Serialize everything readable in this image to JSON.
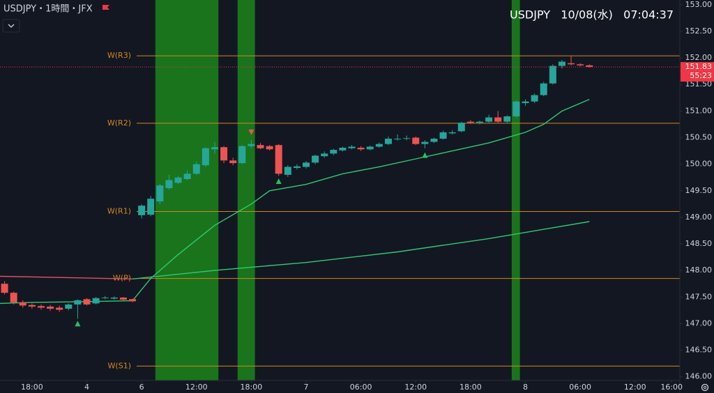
{
  "chart_data": {
    "type": "candlestick",
    "title": "USDJPY・1時間・JFX",
    "overlay_title": "USDJPY   10/08(水)   07:04:37",
    "up_color": "#26a69a",
    "down_color": "#ef5350",
    "x": [
      -3,
      -2,
      -1,
      0,
      1,
      2,
      3,
      4,
      5,
      6,
      7,
      8,
      9,
      10,
      11,
      12,
      13,
      14,
      15,
      16,
      17,
      18,
      19,
      20,
      21,
      22,
      23,
      24,
      25,
      26,
      27,
      28,
      29,
      30,
      31,
      32,
      33,
      34,
      35,
      36,
      37,
      38,
      39,
      40,
      41,
      42,
      43,
      44,
      45,
      46,
      47,
      48,
      49,
      50,
      51,
      52,
      53,
      54,
      55,
      56,
      57,
      58,
      59,
      60,
      61
    ],
    "open": [
      147.75,
      147.58,
      147.4,
      147.35,
      147.33,
      147.32,
      147.3,
      147.28,
      147.36,
      147.46,
      147.38,
      147.48,
      147.47,
      147.49,
      147.46,
      149.04,
      149.05,
      149.3,
      149.55,
      149.65,
      149.72,
      149.82,
      149.98,
      150.28,
      150.32,
      150.07,
      150.02,
      150.34,
      150.36,
      150.34,
      150.36,
      149.8,
      149.93,
      149.95,
      150.03,
      150.15,
      150.2,
      150.26,
      150.3,
      150.31,
      150.28,
      150.33,
      150.38,
      150.47,
      150.48,
      150.5,
      150.38,
      150.42,
      150.48,
      150.58,
      150.62,
      150.8,
      150.78,
      150.8,
      150.88,
      150.8,
      150.9,
      151.15,
      151.18,
      151.3,
      151.52,
      151.85,
      151.9,
      151.88,
      151.86
    ],
    "high": [
      147.8,
      147.6,
      147.44,
      147.38,
      147.36,
      147.35,
      147.34,
      147.38,
      147.46,
      147.48,
      147.5,
      147.52,
      147.51,
      147.5,
      147.47,
      149.25,
      149.4,
      149.63,
      149.8,
      149.78,
      149.88,
      150.05,
      150.32,
      150.42,
      150.34,
      150.12,
      150.36,
      150.45,
      150.4,
      150.36,
      150.38,
      149.98,
      150.0,
      150.06,
      150.18,
      150.24,
      150.29,
      150.33,
      150.36,
      150.34,
      150.35,
      150.41,
      150.52,
      150.56,
      150.54,
      150.52,
      150.45,
      150.5,
      150.63,
      150.64,
      150.8,
      150.83,
      150.82,
      150.93,
      151.0,
      150.92,
      151.2,
      151.22,
      151.33,
      151.55,
      151.88,
      151.96,
      152.05,
      151.9,
      151.88
    ],
    "low": [
      147.55,
      147.36,
      147.3,
      147.28,
      147.26,
      147.24,
      147.22,
      147.25,
      147.09,
      147.34,
      147.36,
      147.46,
      147.45,
      147.43,
      147.4,
      148.98,
      149.02,
      149.25,
      149.52,
      149.62,
      149.7,
      149.8,
      149.95,
      150.2,
      150.02,
      149.98,
      150.0,
      150.3,
      150.28,
      150.26,
      149.78,
      149.76,
      149.9,
      149.92,
      150.0,
      150.12,
      150.17,
      150.24,
      150.28,
      150.25,
      150.26,
      150.31,
      150.36,
      150.44,
      150.45,
      150.36,
      150.3,
      150.4,
      150.46,
      150.56,
      150.6,
      150.76,
      150.75,
      150.78,
      150.78,
      150.78,
      150.88,
      151.1,
      151.15,
      151.28,
      151.5,
      151.8,
      151.86,
      151.84,
      151.82
    ],
    "close": [
      147.58,
      147.4,
      147.34,
      147.32,
      147.3,
      147.28,
      147.26,
      147.36,
      147.44,
      147.36,
      147.48,
      147.49,
      147.49,
      147.45,
      147.42,
      149.22,
      149.35,
      149.6,
      149.7,
      149.75,
      149.82,
      150.0,
      150.3,
      150.32,
      150.07,
      150.02,
      150.34,
      150.38,
      150.3,
      150.28,
      149.82,
      149.95,
      149.96,
      150.03,
      150.16,
      150.2,
      150.27,
      150.31,
      150.33,
      150.28,
      150.33,
      150.38,
      150.48,
      150.48,
      150.49,
      150.38,
      150.42,
      150.48,
      150.6,
      150.6,
      150.78,
      150.78,
      150.8,
      150.88,
      150.8,
      150.9,
      151.18,
      151.18,
      151.3,
      151.52,
      151.85,
      151.93,
      151.88,
      151.86,
      151.83
    ],
    "lines": [
      {
        "color": "#e0505f",
        "x": [
          -3.5,
          11
        ],
        "values": [
          147.89,
          147.84
        ]
      },
      {
        "color": "#2ecc71",
        "x": [
          -3.5,
          0,
          5,
          11,
          13,
          16,
          20,
          24,
          26,
          30,
          34,
          38,
          42,
          46,
          50,
          54,
          56,
          58,
          61
        ],
        "values": [
          147.38,
          147.4,
          147.41,
          147.43,
          147.85,
          148.3,
          148.85,
          149.25,
          149.5,
          149.62,
          149.82,
          149.95,
          150.1,
          150.25,
          150.4,
          150.6,
          150.75,
          151.0,
          151.22
        ]
      },
      {
        "color": "#2ecc71",
        "x": [
          11,
          20,
          30,
          40,
          50,
          61
        ],
        "values": [
          147.84,
          148.0,
          148.15,
          148.35,
          148.6,
          148.92
        ]
      }
    ],
    "levels": [
      {
        "label": "W(R3)",
        "value": 152.04
      },
      {
        "label": "W(R2)",
        "value": 150.77
      },
      {
        "label": "W(R1)",
        "value": 149.11
      },
      {
        "label": "W(P)",
        "value": 147.85
      },
      {
        "label": "W(S1)",
        "value": 146.2
      }
    ],
    "level_color": "#d4881c",
    "bands": [
      {
        "x": [
          13.5,
          20.4
        ]
      },
      {
        "x": [
          22.5,
          24.4
        ]
      },
      {
        "x": [
          52.5,
          53.4
        ]
      }
    ],
    "band_color": "#1a7d1c",
    "markers": [
      {
        "x": 5,
        "value": 147.0,
        "shape": "up",
        "color": "#22c55e"
      },
      {
        "x": 27,
        "value": 149.68,
        "shape": "up",
        "color": "#22c55e"
      },
      {
        "x": 43,
        "value": 150.17,
        "shape": "up",
        "color": "#22c55e"
      },
      {
        "x": 24,
        "value": 150.6,
        "shape": "down",
        "color": "#ef5350"
      }
    ],
    "last_price": {
      "value": 151.83,
      "countdown": "55:23",
      "color": "#f23645"
    },
    "xlim": [
      -3.5,
      70.9
    ],
    "ylim": [
      145.93,
      153.09
    ],
    "xticks": [
      {
        "value": 0,
        "label": "18:00"
      },
      {
        "value": 6,
        "label": "4"
      },
      {
        "value": 12,
        "label": "6"
      },
      {
        "value": 18,
        "label": "12:00"
      },
      {
        "value": 24,
        "label": "18:00"
      },
      {
        "value": 30,
        "label": "7"
      },
      {
        "value": 36,
        "label": "06:00"
      },
      {
        "value": 42,
        "label": "12:00"
      },
      {
        "value": 48,
        "label": "18:00"
      },
      {
        "value": 54,
        "label": "8"
      },
      {
        "value": 60,
        "label": "06:00"
      },
      {
        "value": 66,
        "label": "12:00"
      },
      {
        "value": 70,
        "label": "16:00"
      }
    ],
    "yticks": [
      {
        "value": 153,
        "label": "153.00"
      },
      {
        "value": 152.5,
        "label": "152.50"
      },
      {
        "value": 152,
        "label": "152.00"
      },
      {
        "value": 151.5,
        "label": "151.50"
      },
      {
        "value": 151,
        "label": "151.00"
      },
      {
        "value": 150.5,
        "label": "150.50"
      },
      {
        "value": 150,
        "label": "150.00"
      },
      {
        "value": 149.5,
        "label": "149.50"
      },
      {
        "value": 149,
        "label": "149.00"
      },
      {
        "value": 148.5,
        "label": "148.50"
      },
      {
        "value": 148,
        "label": "148.00"
      },
      {
        "value": 147.5,
        "label": "147.50"
      },
      {
        "value": 147,
        "label": "147.00"
      },
      {
        "value": 146.5,
        "label": "146.50"
      },
      {
        "value": 146,
        "label": "146.00"
      }
    ]
  }
}
